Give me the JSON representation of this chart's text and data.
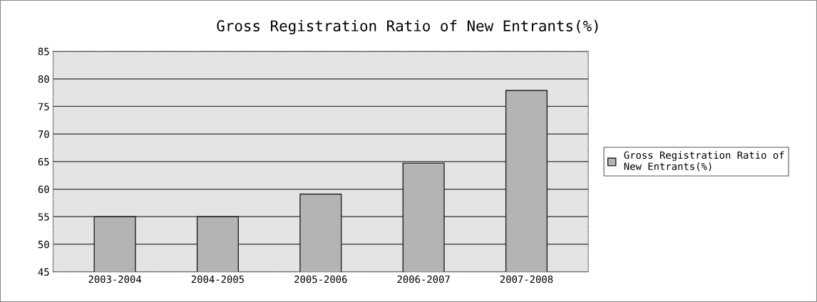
{
  "chart_data": {
    "type": "bar",
    "title": "Gross Registration Ratio of New Entrants(%)",
    "categories": [
      "2003-2004",
      "2004-2005",
      "2005-2006",
      "2006-2007",
      "2007-2008"
    ],
    "series": [
      {
        "name": "Gross Registration Ratio of\nNew Entrants(%)",
        "color": "#b4b4b4",
        "values": [
          55.0,
          55.0,
          59.1,
          64.7,
          77.9
        ]
      }
    ],
    "ylim": [
      45,
      85
    ],
    "yticks": [
      45,
      50,
      55,
      60,
      65,
      70,
      75,
      80,
      85
    ],
    "grid": "y",
    "legend": "right"
  }
}
